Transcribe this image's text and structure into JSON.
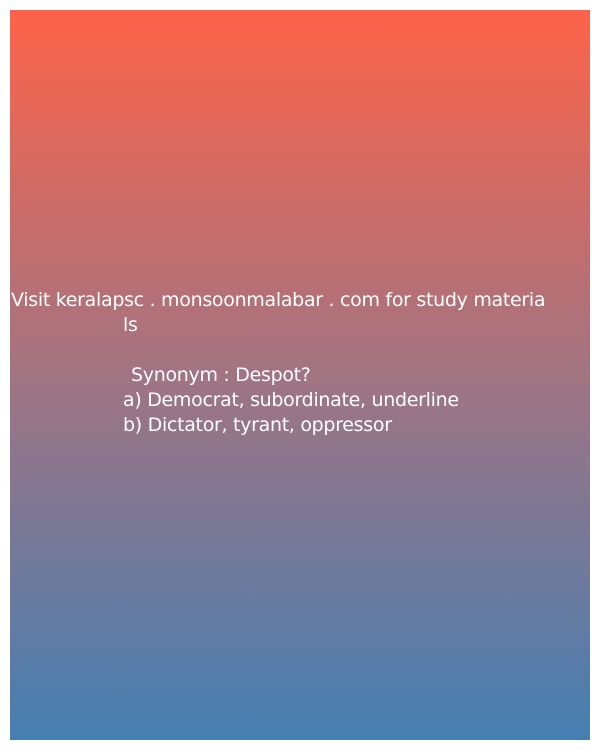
{
  "promo": {
    "line1": "Visit keralapsc . monsoonmalabar . com for study materia",
    "line2": "ls"
  },
  "question": {
    "prompt": "Synonym : Despot?",
    "options": [
      "a) Democrat, subordinate, underline",
      "b) Dictator, tyrant, oppressor"
    ]
  },
  "colors": {
    "gradient_top": "#fe634a",
    "gradient_middle": "#a17482",
    "gradient_bottom": "#457fb2",
    "text": "#ffffff"
  }
}
